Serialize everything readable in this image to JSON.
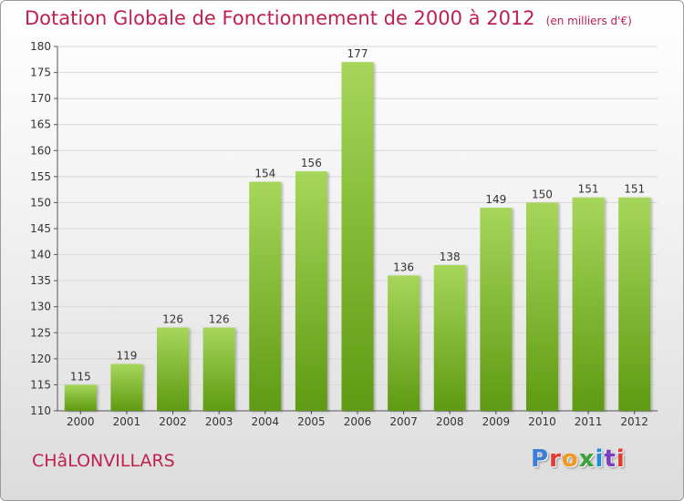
{
  "title": "Dotation Globale de Fonctionnement de 2000 à 2012",
  "subtitle": "(en milliers d'€)",
  "commune": "CHâLONVILLARS",
  "brand": {
    "letters": [
      "P",
      "r",
      "o",
      "x",
      "i",
      "t",
      "i"
    ],
    "colors": [
      "#3a7ed6",
      "#e23a2e",
      "#f29a1f",
      "#3aa33a",
      "#1f8ad6",
      "#7a3fc0",
      "#e23a2e"
    ]
  },
  "colors": {
    "title": "#c0204f",
    "bar_top": "#a6d65a",
    "bar_bottom": "#5f9a12",
    "grid": "#d8d8d8",
    "axis": "#555555",
    "label": "#333333"
  },
  "chart_data": {
    "type": "bar",
    "categories": [
      "2000",
      "2001",
      "2002",
      "2003",
      "2004",
      "2005",
      "2006",
      "2007",
      "2008",
      "2009",
      "2010",
      "2011",
      "2012"
    ],
    "values": [
      115,
      119,
      126,
      126,
      154,
      156,
      177,
      136,
      138,
      149,
      150,
      151,
      151
    ],
    "ylim": [
      110,
      180
    ],
    "yticks": [
      110,
      115,
      120,
      125,
      130,
      135,
      140,
      145,
      150,
      155,
      160,
      165,
      170,
      175,
      180
    ],
    "grid": true,
    "data_labels": true
  }
}
